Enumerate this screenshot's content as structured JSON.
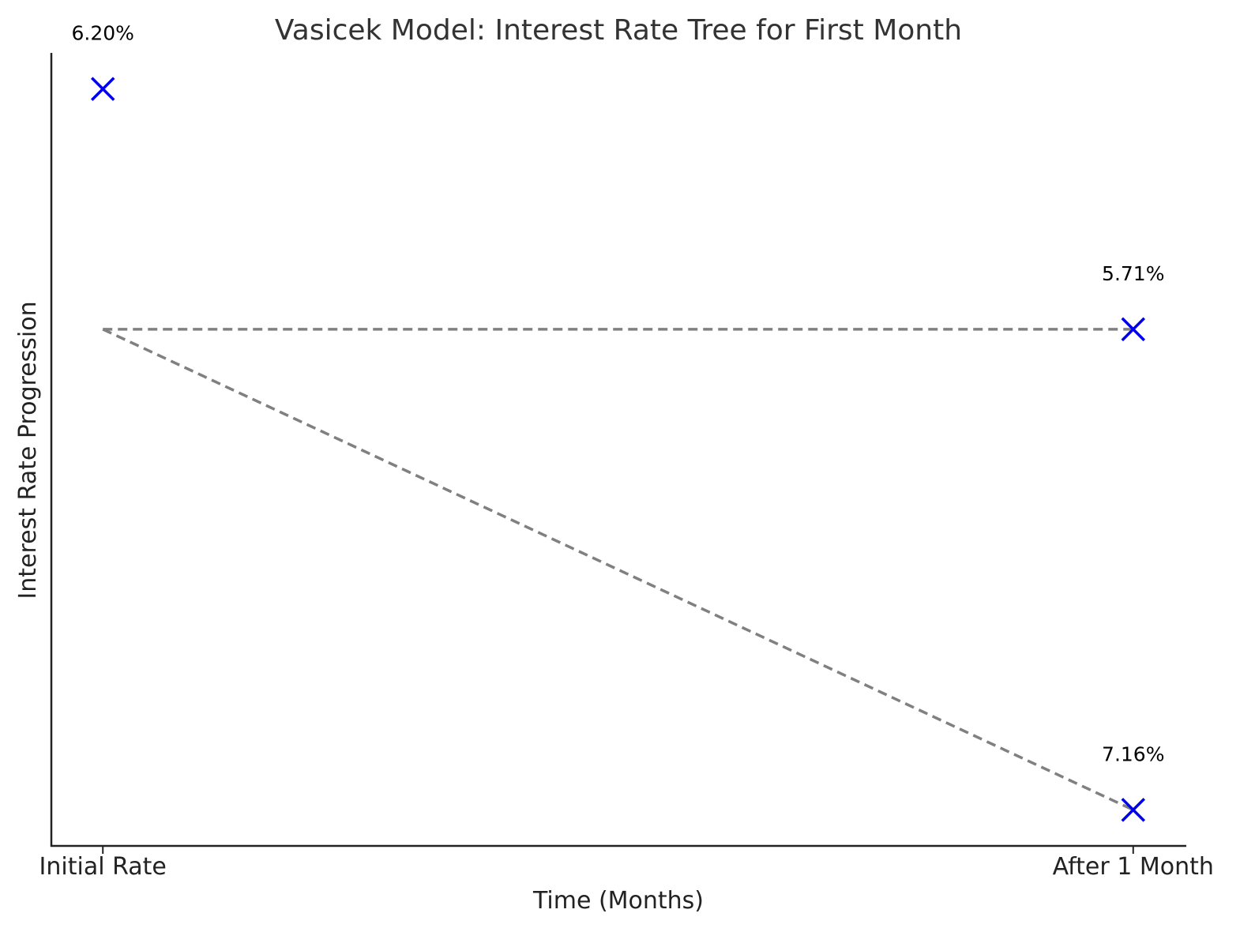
{
  "chart_data": {
    "type": "scatter",
    "title": "Vasicek Model: Interest Rate Tree for First Month",
    "xlabel": "Time (Months)",
    "ylabel": "Interest Rate Progression",
    "categories": [
      "Initial Rate",
      "After 1 Month"
    ],
    "points": [
      {
        "x": 0,
        "y": 2,
        "label": "6.20%"
      },
      {
        "x": 1,
        "y": 1,
        "label": "5.71%"
      },
      {
        "x": 1,
        "y": -1,
        "label": "7.16%"
      }
    ],
    "branches": [
      {
        "from": [
          0,
          1
        ],
        "to": [
          1,
          1
        ]
      },
      {
        "from": [
          0,
          1
        ],
        "to": [
          1,
          -1
        ]
      }
    ],
    "xlim": [
      -0.05,
      1.05
    ],
    "ylim": [
      -1.15,
      2.15
    ],
    "grid": false,
    "colors": {
      "marker": "#0000ee",
      "branch": "#808080"
    }
  }
}
